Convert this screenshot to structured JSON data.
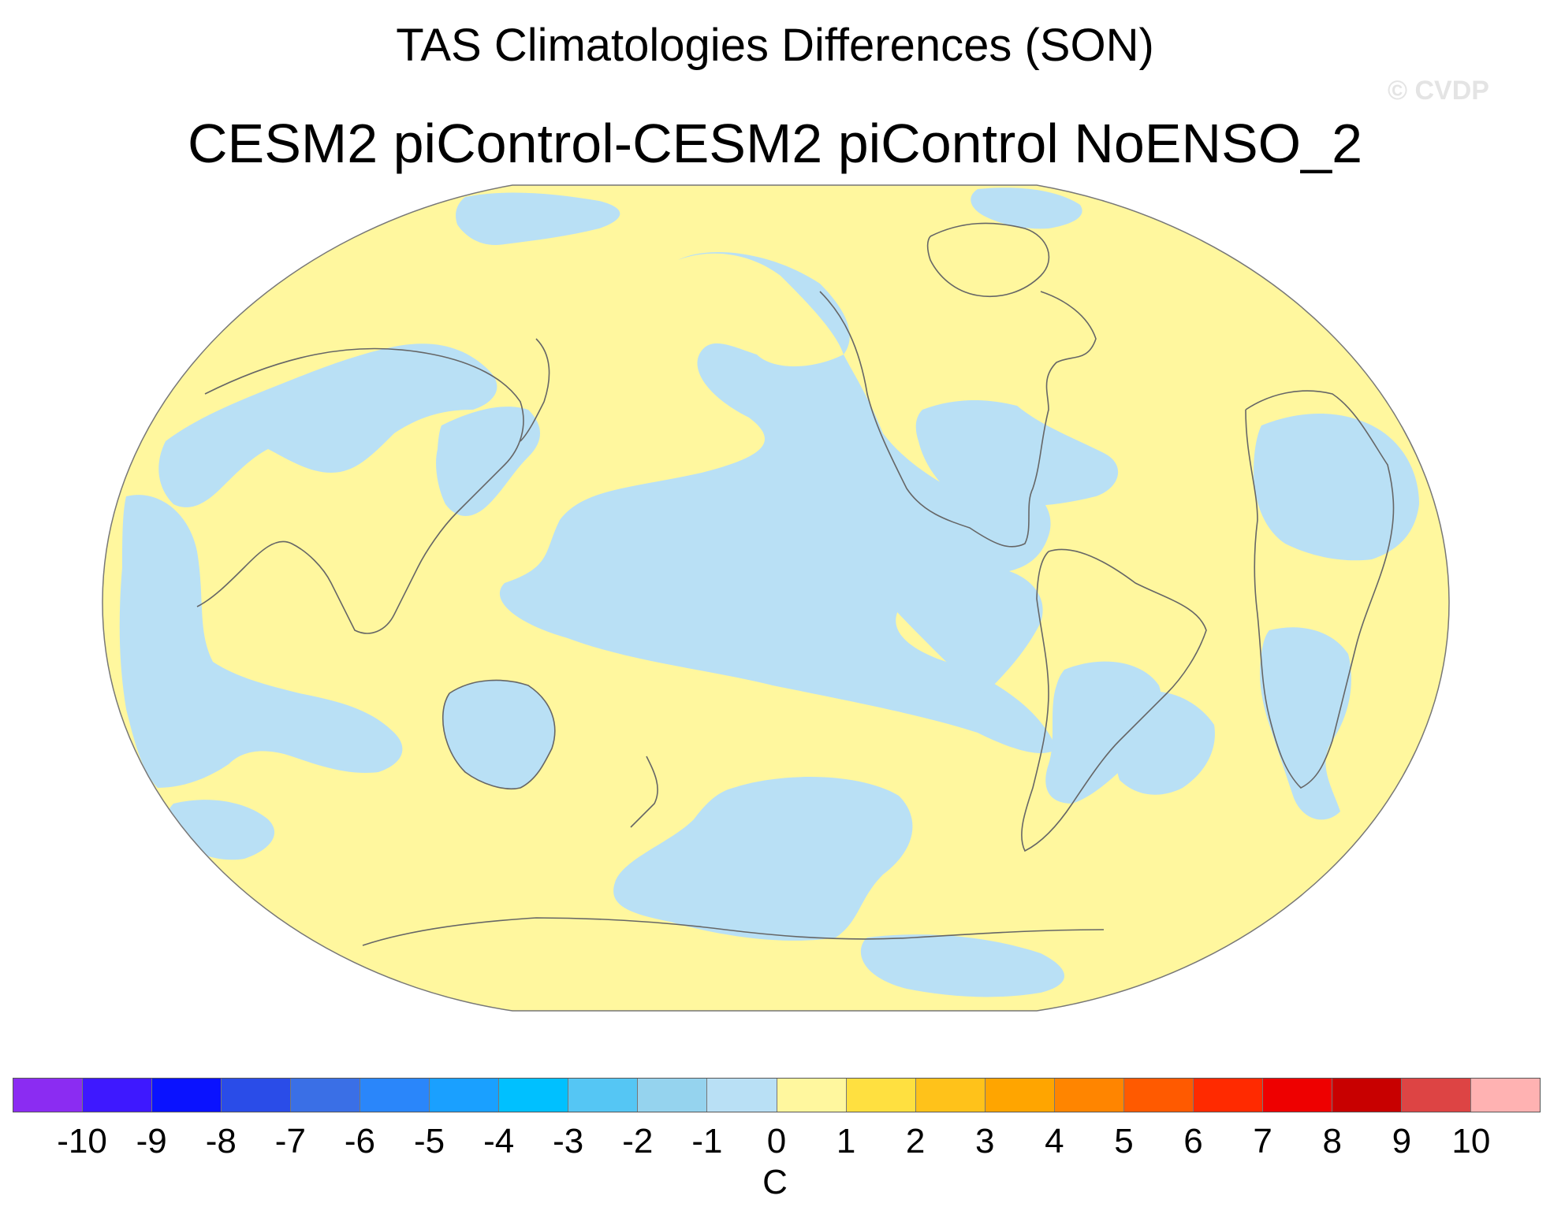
{
  "figure": {
    "title": "TAS Climatologies Differences (SON)",
    "subtitle": "CESM2 piControl-CESM2 piControl NoENSO_2",
    "watermark": "© CVDP"
  },
  "map": {
    "projection": "Robinson",
    "variable": "TAS",
    "season": "SON",
    "ocean_positive_color": "#fff79e",
    "negative_color": "#b9e0f5",
    "coastline_color": "#666666"
  },
  "colorbar": {
    "unit": "C",
    "ticks": [
      "-10",
      "-9",
      "-8",
      "-7",
      "-6",
      "-5",
      "-4",
      "-3",
      "-2",
      "-1",
      "0",
      "1",
      "2",
      "3",
      "4",
      "5",
      "6",
      "7",
      "8",
      "9",
      "10"
    ],
    "colors": [
      "#8b2cf2",
      "#3e18ff",
      "#0a12ff",
      "#2a4ce8",
      "#3a6fe6",
      "#2a86fa",
      "#1aa0ff",
      "#00c0ff",
      "#55c6f4",
      "#95d3ee",
      "#b9e0f5",
      "#fff79e",
      "#ffe040",
      "#ffc21a",
      "#ffa500",
      "#ff8500",
      "#ff5a00",
      "#ff2a00",
      "#ee0000",
      "#c80000",
      "#dd4444",
      "#ffb2b2"
    ]
  }
}
